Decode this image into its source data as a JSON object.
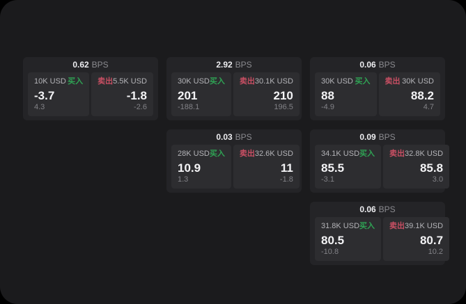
{
  "labels": {
    "bps_unit": "BPS",
    "buy": "买入",
    "sell": "卖出"
  },
  "colors": {
    "page_background": "#000000",
    "panel_background": "#1b1b1d",
    "card_background": "#242427",
    "tile_background": "#2d2d30",
    "buy_accent": "#2fa254",
    "sell_accent": "#c84f63",
    "value_text": "#f3f3f5",
    "muted_text": "#828287"
  },
  "cards": [
    {
      "bps": "0.62",
      "grid": {
        "col": 1,
        "row": 1
      },
      "buy": {
        "amount": "10K USD",
        "price": "-3.7",
        "delta": "4.3"
      },
      "sell": {
        "amount": "5.5K USD",
        "price": "-1.8",
        "delta": "-2.6"
      }
    },
    {
      "bps": "2.92",
      "grid": {
        "col": 2,
        "row": 1
      },
      "buy": {
        "amount": "30K USD",
        "price": "201",
        "delta": "-188.1"
      },
      "sell": {
        "amount": "30.1K USD",
        "price": "210",
        "delta": "196.5"
      }
    },
    {
      "bps": "0.06",
      "grid": {
        "col": 3,
        "row": 1
      },
      "buy": {
        "amount": "30K USD",
        "price": "88",
        "delta": "-4.9"
      },
      "sell": {
        "amount": "30K USD",
        "price": "88.2",
        "delta": "4.7"
      }
    },
    {
      "bps": "0.03",
      "grid": {
        "col": 2,
        "row": 2
      },
      "buy": {
        "amount": "28K USD",
        "price": "10.9",
        "delta": "1.3"
      },
      "sell": {
        "amount": "32.6K USD",
        "price": "11",
        "delta": "-1.8"
      }
    },
    {
      "bps": "0.09",
      "grid": {
        "col": 3,
        "row": 2
      },
      "buy": {
        "amount": "34.1K USD",
        "price": "85.5",
        "delta": "-3.1"
      },
      "sell": {
        "amount": "32.8K USD",
        "price": "85.8",
        "delta": "3.0"
      }
    },
    {
      "bps": "0.06",
      "grid": {
        "col": 3,
        "row": 3
      },
      "buy": {
        "amount": "31.8K USD",
        "price": "80.5",
        "delta": "-10.8"
      },
      "sell": {
        "amount": "39.1K USD",
        "price": "80.7",
        "delta": "10.2"
      }
    }
  ]
}
